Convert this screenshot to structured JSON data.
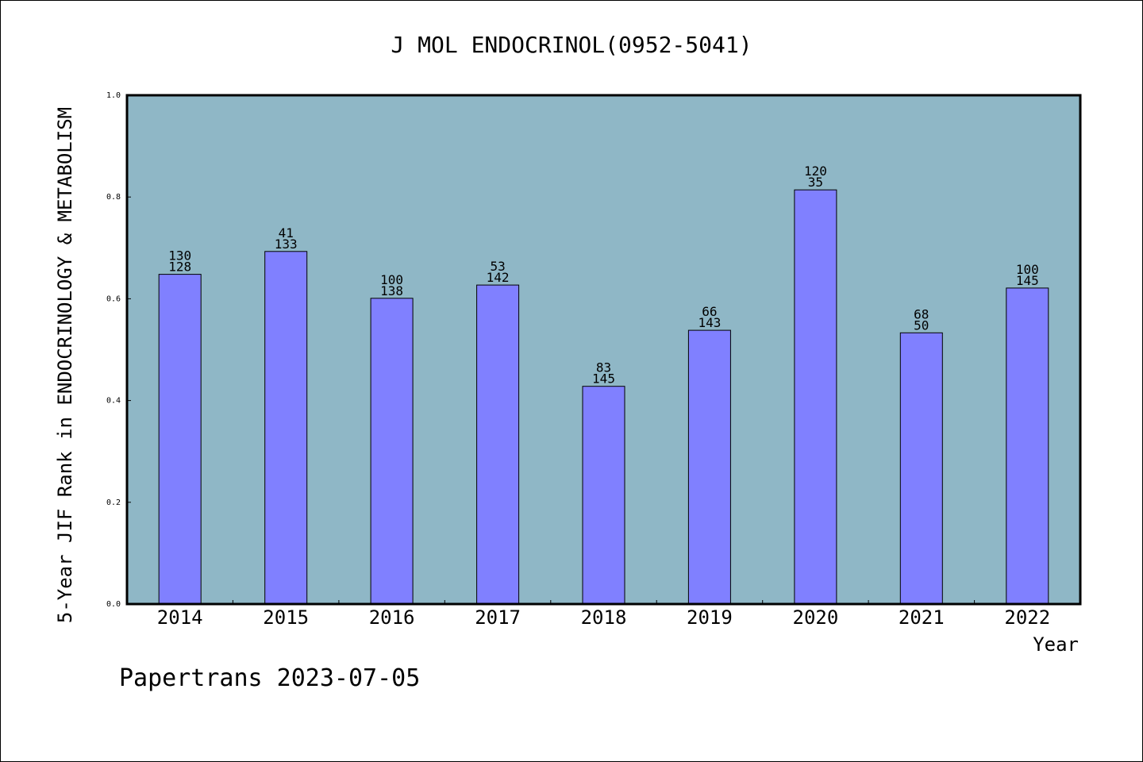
{
  "chart_data": {
    "type": "bar",
    "title": "J MOL ENDOCRINOL(0952-5041)",
    "xlabel": "Year",
    "ylabel": "5-Year JIF Rank in ENDOCRINOLOGY & METABOLISM",
    "ylim": [
      0,
      1.0
    ],
    "yticks": [
      "0.0",
      "0.2",
      "0.4",
      "0.6",
      "0.8",
      "1.0"
    ],
    "categories": [
      "2014",
      "2015",
      "2016",
      "2017",
      "2018",
      "2019",
      "2020",
      "2021",
      "2022"
    ],
    "values": [
      0.648,
      0.693,
      0.601,
      0.627,
      0.428,
      0.538,
      0.814,
      0.533,
      0.621
    ],
    "labels_top": [
      "130",
      "41",
      "100",
      "53",
      "83",
      "66",
      "120",
      "68",
      "100"
    ],
    "labels_bottom": [
      "128",
      "133",
      "138",
      "142",
      "145",
      "143",
      "35",
      "50",
      "145"
    ],
    "grid": false,
    "colors": {
      "plot_background": "#8fb7c6",
      "bar_fill": "#8080ff",
      "bar_stroke": "#000000"
    }
  },
  "footer": "Papertrans 2023-07-05"
}
